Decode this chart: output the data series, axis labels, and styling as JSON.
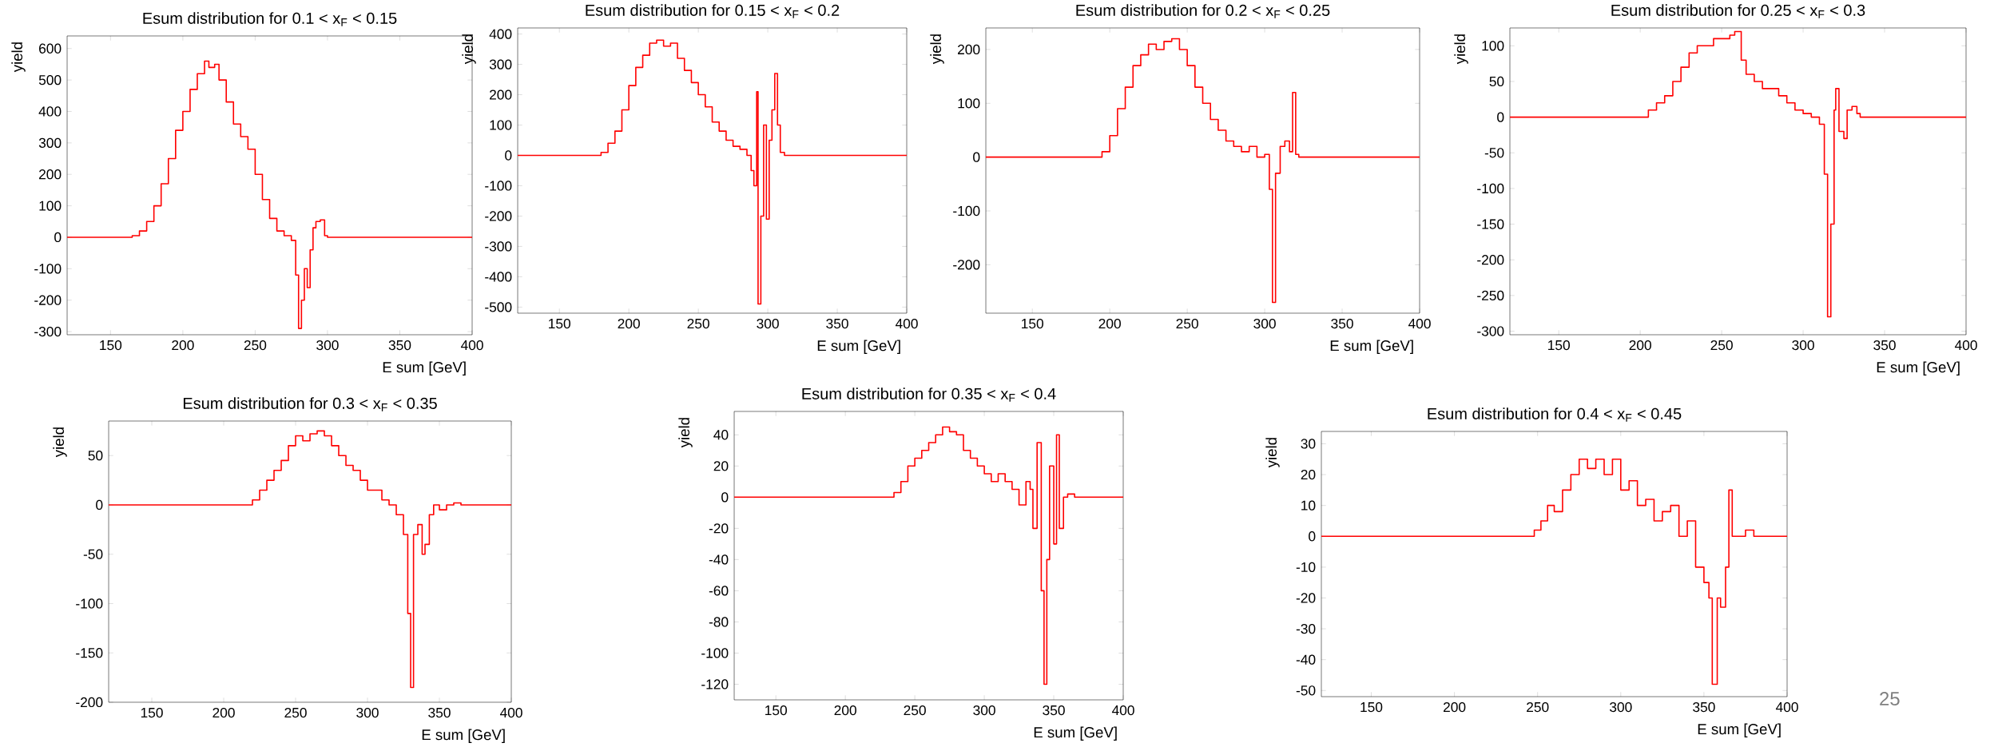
{
  "chart_data": [
    {
      "type": "step",
      "title": "Esum distribution for 0.1  < x$_{F}$ < 0.15",
      "xlabel": "E sum [GeV]",
      "ylabel": "yield",
      "xlim": [
        120,
        400
      ],
      "ylim": [
        -310,
        640
      ],
      "xticks": [
        150,
        200,
        250,
        300,
        350,
        400
      ],
      "yticks": [
        -300,
        -200,
        -100,
        0,
        100,
        200,
        300,
        400,
        500,
        600
      ],
      "color": "#ff0000",
      "x": [
        120,
        160,
        165,
        170,
        175,
        180,
        185,
        190,
        195,
        200,
        205,
        210,
        215,
        218,
        222,
        225,
        230,
        235,
        240,
        245,
        250,
        255,
        260,
        265,
        270,
        275,
        278,
        280,
        282,
        284,
        286,
        288,
        290,
        292,
        295,
        298,
        300,
        400
      ],
      "values": [
        0,
        0,
        5,
        20,
        50,
        100,
        170,
        250,
        340,
        400,
        470,
        520,
        560,
        540,
        550,
        500,
        430,
        360,
        320,
        280,
        200,
        120,
        60,
        20,
        5,
        -10,
        -120,
        -290,
        -200,
        -100,
        -160,
        -40,
        30,
        50,
        55,
        5,
        0,
        0
      ]
    },
    {
      "type": "step",
      "title": "Esum distribution for 0.15 < x$_{F}$ < 0.2",
      "xlabel": "E sum [GeV]",
      "ylabel": "yield",
      "xlim": [
        120,
        400
      ],
      "ylim": [
        -520,
        420
      ],
      "xticks": [
        150,
        200,
        250,
        300,
        350,
        400
      ],
      "yticks": [
        -500,
        -400,
        -300,
        -200,
        -100,
        0,
        100,
        200,
        300,
        400
      ],
      "color": "#ff0000",
      "x": [
        120,
        175,
        180,
        185,
        190,
        195,
        200,
        205,
        210,
        215,
        220,
        225,
        230,
        235,
        240,
        245,
        250,
        255,
        260,
        265,
        270,
        275,
        280,
        285,
        288,
        290,
        292,
        293,
        295,
        297,
        299,
        301,
        303,
        305,
        307,
        309,
        312,
        400
      ],
      "values": [
        0,
        0,
        10,
        40,
        80,
        150,
        230,
        290,
        330,
        370,
        380,
        360,
        370,
        320,
        280,
        240,
        200,
        160,
        110,
        80,
        50,
        30,
        20,
        0,
        -50,
        -100,
        210,
        -490,
        -200,
        100,
        -210,
        50,
        150,
        270,
        100,
        10,
        0,
        0
      ]
    },
    {
      "type": "step",
      "title": "Esum distribution for 0.2  < x$_{F}$ < 0.25",
      "xlabel": "E sum [GeV]",
      "ylabel": "yield",
      "xlim": [
        120,
        400
      ],
      "ylim": [
        -290,
        240
      ],
      "xticks": [
        150,
        200,
        250,
        300,
        350,
        400
      ],
      "yticks": [
        -200,
        -100,
        0,
        100,
        200
      ],
      "color": "#ff0000",
      "x": [
        120,
        190,
        195,
        200,
        205,
        210,
        215,
        220,
        225,
        230,
        235,
        240,
        245,
        250,
        255,
        260,
        265,
        270,
        275,
        280,
        285,
        290,
        295,
        300,
        303,
        305,
        307,
        310,
        313,
        316,
        318,
        320,
        322,
        400
      ],
      "values": [
        0,
        0,
        10,
        40,
        90,
        130,
        170,
        190,
        210,
        200,
        215,
        220,
        200,
        170,
        130,
        100,
        70,
        50,
        30,
        20,
        10,
        20,
        0,
        5,
        -60,
        -270,
        -30,
        20,
        30,
        10,
        120,
        5,
        0,
        0
      ]
    },
    {
      "type": "step",
      "title": "Esum distribution for 0.25 < x$_{F}$ < 0.3",
      "xlabel": "E sum [GeV]",
      "ylabel": "yield",
      "xlim": [
        120,
        400
      ],
      "ylim": [
        -305,
        125
      ],
      "xticks": [
        150,
        200,
        250,
        300,
        350,
        400
      ],
      "yticks": [
        -300,
        -250,
        -200,
        -150,
        -100,
        -50,
        0,
        50,
        100
      ],
      "color": "#ff0000",
      "x": [
        120,
        200,
        205,
        210,
        215,
        220,
        225,
        230,
        235,
        240,
        245,
        250,
        255,
        258,
        262,
        265,
        270,
        275,
        280,
        285,
        290,
        295,
        300,
        305,
        310,
        313,
        315,
        317,
        319,
        320,
        322,
        325,
        327,
        330,
        333,
        335,
        400
      ],
      "values": [
        0,
        0,
        10,
        20,
        30,
        50,
        70,
        90,
        100,
        100,
        110,
        110,
        115,
        120,
        80,
        60,
        50,
        40,
        40,
        30,
        20,
        10,
        5,
        0,
        -10,
        -80,
        -280,
        -150,
        10,
        40,
        -20,
        -30,
        10,
        15,
        5,
        0,
        0
      ]
    },
    {
      "type": "step",
      "title": "Esum distribution for 0.3  < x$_{F}$ < 0.35",
      "xlabel": "E sum [GeV]",
      "ylabel": "yield",
      "xlim": [
        120,
        400
      ],
      "ylim": [
        -200,
        85
      ],
      "xticks": [
        150,
        200,
        250,
        300,
        350,
        400
      ],
      "yticks": [
        -200,
        -150,
        -100,
        -50,
        0,
        50
      ],
      "color": "#ff0000",
      "x": [
        120,
        215,
        220,
        225,
        230,
        235,
        240,
        245,
        250,
        255,
        260,
        265,
        270,
        275,
        280,
        285,
        290,
        295,
        300,
        305,
        310,
        315,
        320,
        325,
        328,
        330,
        332,
        335,
        338,
        340,
        343,
        346,
        350,
        355,
        360,
        365,
        400
      ],
      "values": [
        0,
        0,
        5,
        15,
        25,
        35,
        45,
        60,
        70,
        65,
        72,
        75,
        70,
        60,
        50,
        40,
        35,
        25,
        15,
        15,
        5,
        0,
        -10,
        -30,
        -110,
        -185,
        -30,
        -20,
        -50,
        -40,
        -10,
        0,
        -5,
        0,
        2,
        0,
        0
      ]
    },
    {
      "type": "step",
      "title": "Esum distribution for 0.35 < x$_{F}$ < 0.4",
      "xlabel": "E sum [GeV]",
      "ylabel": "yield",
      "xlim": [
        120,
        400
      ],
      "ylim": [
        -130,
        55
      ],
      "xticks": [
        150,
        200,
        250,
        300,
        350,
        400
      ],
      "yticks": [
        -120,
        -100,
        -80,
        -60,
        -40,
        -20,
        0,
        20,
        40
      ],
      "color": "#ff0000",
      "x": [
        120,
        230,
        235,
        240,
        245,
        250,
        255,
        260,
        265,
        270,
        275,
        280,
        285,
        290,
        295,
        300,
        305,
        310,
        315,
        320,
        325,
        330,
        333,
        335,
        338,
        341,
        343,
        345,
        347,
        350,
        352,
        354,
        357,
        360,
        365,
        400
      ],
      "values": [
        0,
        0,
        3,
        10,
        20,
        25,
        30,
        35,
        40,
        45,
        42,
        40,
        30,
        25,
        20,
        15,
        10,
        15,
        10,
        5,
        -5,
        10,
        5,
        -20,
        35,
        -60,
        -120,
        -40,
        20,
        -30,
        40,
        -20,
        0,
        2,
        0,
        0
      ]
    },
    {
      "type": "step",
      "title": "Esum distribution for 0.4  < x$_{F}$ < 0.45",
      "xlabel": "E sum [GeV]",
      "ylabel": "yield",
      "xlim": [
        120,
        400
      ],
      "ylim": [
        -52,
        34
      ],
      "xticks": [
        150,
        200,
        250,
        300,
        350,
        400
      ],
      "yticks": [
        -50,
        -40,
        -30,
        -20,
        -10,
        0,
        10,
        20,
        30
      ],
      "color": "#ff0000",
      "annotations": [
        "25"
      ],
      "x": [
        120,
        245,
        248,
        252,
        256,
        260,
        265,
        270,
        275,
        280,
        285,
        290,
        295,
        300,
        305,
        310,
        315,
        320,
        325,
        330,
        335,
        340,
        345,
        350,
        353,
        355,
        358,
        360,
        363,
        365,
        367,
        370,
        375,
        380,
        400
      ],
      "values": [
        0,
        0,
        2,
        5,
        10,
        8,
        15,
        20,
        25,
        22,
        25,
        20,
        25,
        15,
        18,
        10,
        12,
        5,
        8,
        10,
        0,
        5,
        -10,
        -15,
        -20,
        -48,
        -20,
        -23,
        -10,
        15,
        0,
        0,
        2,
        0,
        0
      ]
    }
  ]
}
